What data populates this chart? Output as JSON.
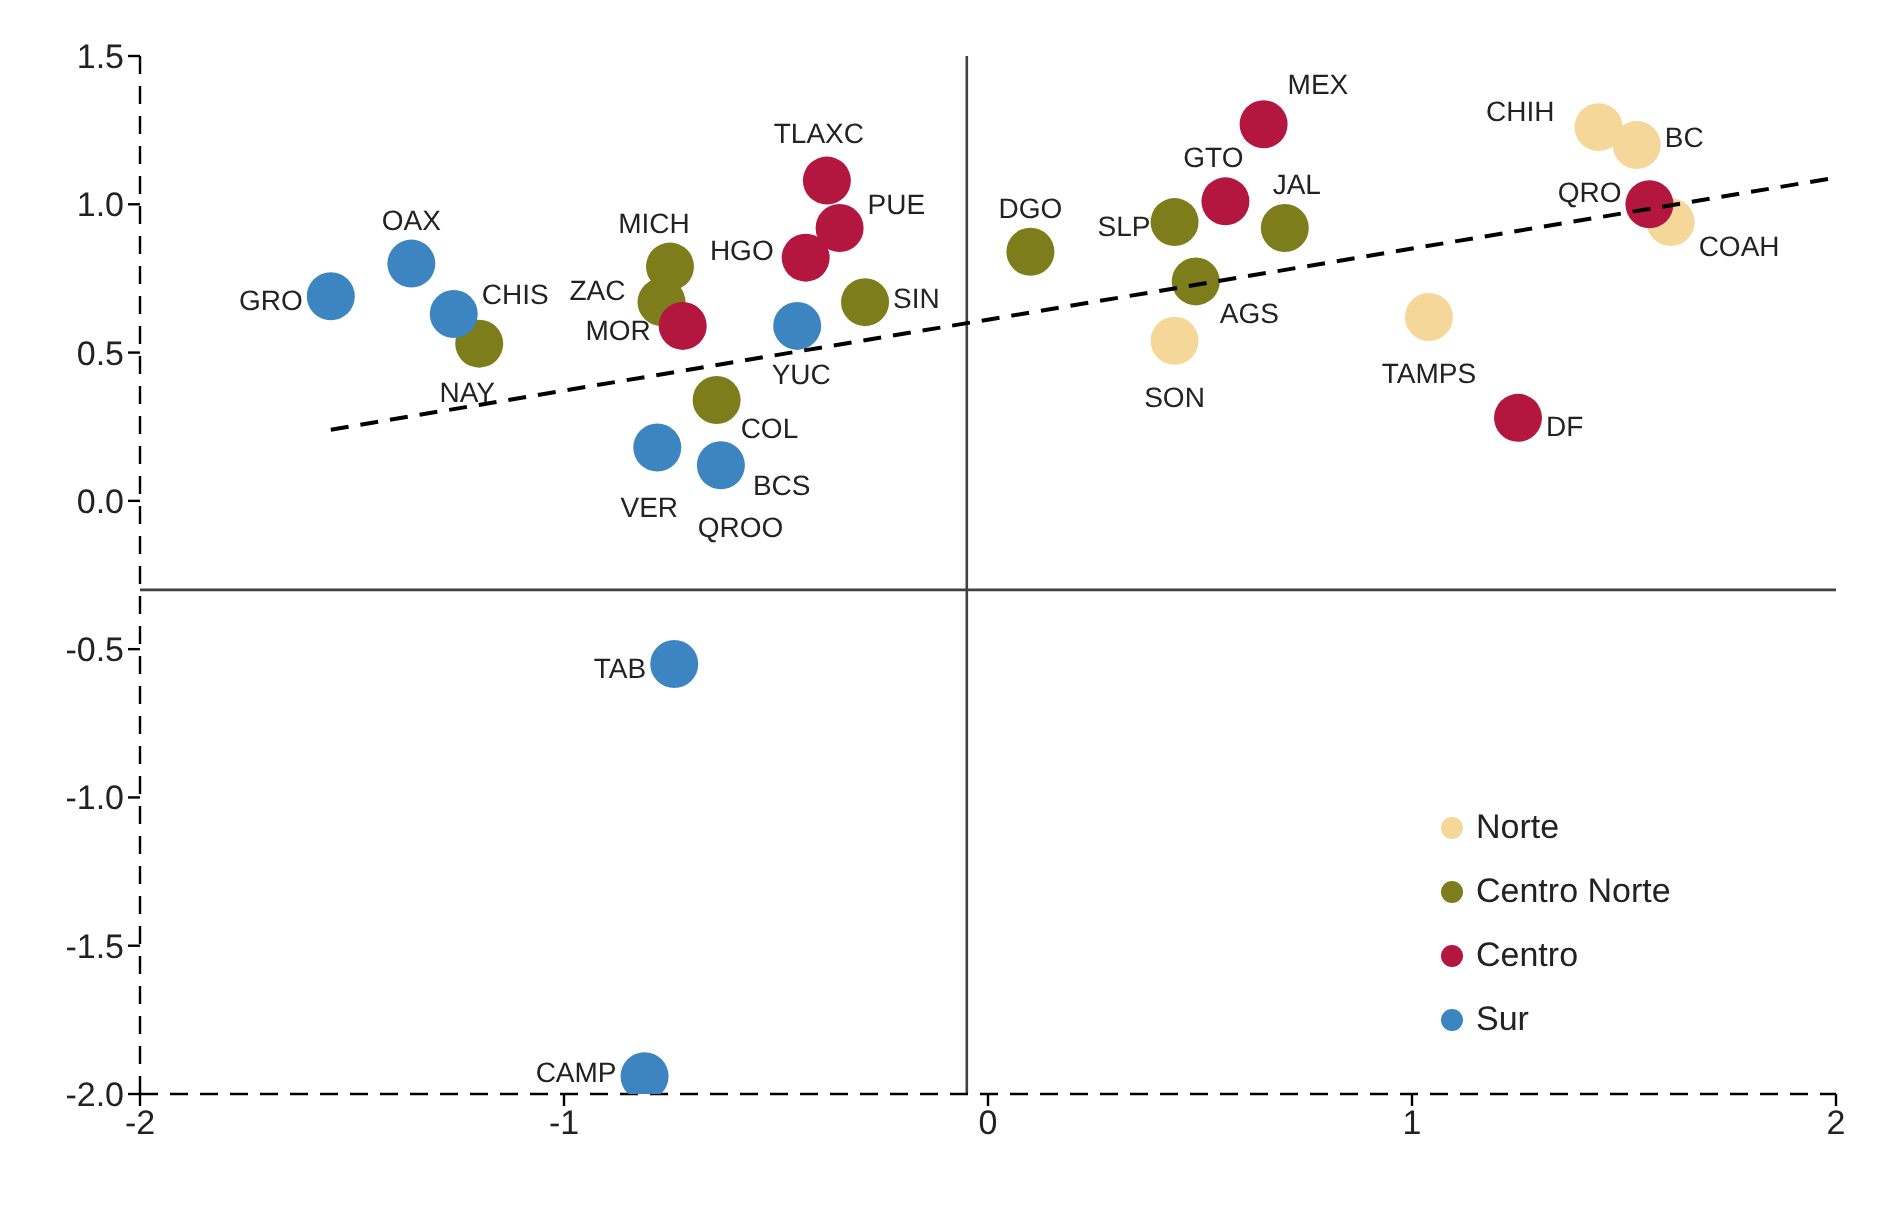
{
  "chart_data": {
    "type": "scatter",
    "xlim": [
      -2,
      2
    ],
    "xticks": [
      -2,
      -1,
      0,
      1,
      2
    ],
    "ylim": [
      -2,
      1.5
    ],
    "yticks": [
      {
        "value": -2,
        "label": "-2.0"
      },
      -1.5,
      {
        "value": -1,
        "label": "-1.0"
      },
      -0.5,
      {
        "value": 0,
        "label": "0.0"
      },
      0.5,
      {
        "value": 1,
        "label": "1.0"
      },
      1.5
    ],
    "grid": false,
    "legend": "bottom right",
    "marker": "circle",
    "series": [
      {
        "name": "Norte",
        "color": "#f6d79a",
        "x": [
          1.44,
          1.53,
          1.61,
          0.44,
          1.04
        ],
        "values": [
          1.26,
          1.2,
          0.94,
          0.54,
          0.62
        ]
      },
      {
        "name": "Centro Norte",
        "color": "#7d7d1c",
        "x": [
          -1.2,
          -0.75,
          -0.77,
          -0.64,
          -0.29,
          0.1,
          0.44,
          0.49,
          0.7
        ],
        "values": [
          0.53,
          0.79,
          0.67,
          0.34,
          0.67,
          0.84,
          0.94,
          0.74,
          0.92
        ]
      },
      {
        "name": "Centro",
        "color": "#b3173f",
        "x": [
          -0.38,
          -0.35,
          -0.43,
          -0.72,
          0.65,
          0.56,
          1.56,
          1.25
        ],
        "values": [
          1.08,
          0.92,
          0.82,
          0.59,
          1.27,
          1.01,
          1.0,
          0.28
        ]
      },
      {
        "name": "Sur",
        "color": "#3d85c0",
        "x": [
          -1.55,
          -1.36,
          -1.26,
          -0.45,
          -0.78,
          -0.64,
          -0.63,
          -0.74,
          -0.81
        ],
        "values": [
          0.69,
          0.8,
          0.63,
          0.59,
          0.18,
          null,
          0.12,
          -0.55,
          -1.94
        ]
      },
      {
        "type": "line",
        "color": "#000000",
        "line_style": "dashed",
        "marker": "none",
        "x": [
          -1.55,
          2
        ],
        "values": [
          0.24,
          1.09
        ]
      }
    ],
    "ref_lines": [
      {
        "axis": "x",
        "value": -0.05,
        "color": "#404040"
      },
      {
        "axis": "y",
        "value": -0.3,
        "color": "#404040"
      }
    ],
    "annotations": [
      {
        "text": "CHIH",
        "x": 1.44,
        "y": 1.26
      },
      {
        "text": "BC",
        "x": 1.53,
        "y": 1.2
      },
      {
        "text": "COAH",
        "x": 1.61,
        "y": 0.94
      },
      {
        "text": "SON",
        "x": 0.44,
        "y": 0.54
      },
      {
        "text": "TAMPS",
        "x": 1.04,
        "y": 0.62
      },
      {
        "text": "NAY",
        "x": -1.2,
        "y": 0.53
      },
      {
        "text": "MICH",
        "x": -0.75,
        "y": 0.79
      },
      {
        "text": "ZAC",
        "x": -0.77,
        "y": 0.67
      },
      {
        "text": "COL",
        "x": -0.64,
        "y": 0.34
      },
      {
        "text": "SIN",
        "x": -0.29,
        "y": 0.67
      },
      {
        "text": "DGO",
        "x": 0.1,
        "y": 0.84
      },
      {
        "text": "SLP",
        "x": 0.44,
        "y": 0.94
      },
      {
        "text": "AGS",
        "x": 0.49,
        "y": 0.74
      },
      {
        "text": "JAL",
        "x": 0.7,
        "y": 0.92
      },
      {
        "text": "TLAXC",
        "x": -0.38,
        "y": 1.08
      },
      {
        "text": "PUE",
        "x": -0.35,
        "y": 0.92
      },
      {
        "text": "HGO",
        "x": -0.43,
        "y": 0.82
      },
      {
        "text": "MOR",
        "x": -0.72,
        "y": 0.59
      },
      {
        "text": "MEX",
        "x": 0.65,
        "y": 1.27
      },
      {
        "text": "GTO",
        "x": 0.56,
        "y": 1.01
      },
      {
        "text": "QRO",
        "x": 1.56,
        "y": 1.0
      },
      {
        "text": "DF",
        "x": 1.25,
        "y": 0.28
      },
      {
        "text": "GRO",
        "x": -1.55,
        "y": 0.69
      },
      {
        "text": "OAX",
        "x": -1.36,
        "y": 0.8
      },
      {
        "text": "CHIS",
        "x": -1.26,
        "y": 0.63
      },
      {
        "text": "YUC",
        "x": -0.45,
        "y": 0.59
      },
      {
        "text": "VER",
        "x": -0.78,
        "y": 0.18
      },
      {
        "text": "QROO",
        "x": -0.64,
        "y": 0.1
      },
      {
        "text": "BCS",
        "x": -0.63,
        "y": 0.12
      },
      {
        "text": "TAB",
        "x": -0.74,
        "y": -0.55
      },
      {
        "text": "CAMP",
        "x": -0.81,
        "y": -1.94
      }
    ]
  }
}
